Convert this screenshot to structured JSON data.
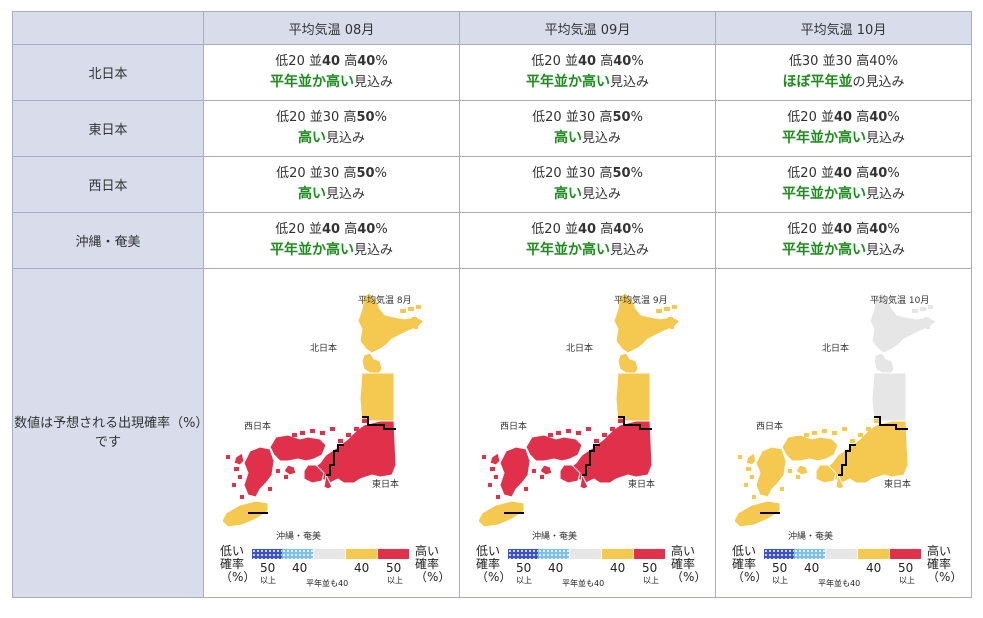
{
  "header": {
    "corner": "",
    "columns": [
      "平均気温 08月",
      "平均気温 09月",
      "平均気温 10月"
    ]
  },
  "rows": [
    {
      "region": "北日本",
      "cells": [
        {
          "low": "20",
          "mid": "40",
          "high": "40",
          "mid_bold": true,
          "high_bold": true,
          "outlook": "平年並か高い",
          "suffix": "見込み"
        },
        {
          "low": "20",
          "mid": "40",
          "high": "40",
          "mid_bold": true,
          "high_bold": true,
          "outlook": "平年並か高い",
          "suffix": "見込み"
        },
        {
          "low": "30",
          "mid": "30",
          "high": "40",
          "mid_bold": false,
          "high_bold": false,
          "outlook": "ほぼ平年並",
          "suffix": "の見込み"
        }
      ]
    },
    {
      "region": "東日本",
      "cells": [
        {
          "low": "20",
          "mid": "30",
          "high": "50",
          "mid_bold": false,
          "high_bold": true,
          "outlook": "高い",
          "suffix": "見込み"
        },
        {
          "low": "20",
          "mid": "30",
          "high": "50",
          "mid_bold": false,
          "high_bold": true,
          "outlook": "高い",
          "suffix": "見込み"
        },
        {
          "low": "20",
          "mid": "40",
          "high": "40",
          "mid_bold": true,
          "high_bold": true,
          "outlook": "平年並か高い",
          "suffix": "見込み"
        }
      ]
    },
    {
      "region": "西日本",
      "cells": [
        {
          "low": "20",
          "mid": "30",
          "high": "50",
          "mid_bold": false,
          "high_bold": true,
          "outlook": "高い",
          "suffix": "見込み"
        },
        {
          "low": "20",
          "mid": "30",
          "high": "50",
          "mid_bold": false,
          "high_bold": true,
          "outlook": "高い",
          "suffix": "見込み"
        },
        {
          "low": "20",
          "mid": "40",
          "high": "40",
          "mid_bold": true,
          "high_bold": true,
          "outlook": "平年並か高い",
          "suffix": "見込み"
        }
      ]
    },
    {
      "region": "沖縄・奄美",
      "cells": [
        {
          "low": "20",
          "mid": "40",
          "high": "40",
          "mid_bold": true,
          "high_bold": true,
          "outlook": "平年並か高い",
          "suffix": "見込み"
        },
        {
          "low": "20",
          "mid": "40",
          "high": "40",
          "mid_bold": true,
          "high_bold": true,
          "outlook": "平年並か高い",
          "suffix": "見込み"
        },
        {
          "low": "20",
          "mid": "40",
          "high": "40",
          "mid_bold": true,
          "high_bold": true,
          "outlook": "平年並か高い",
          "suffix": "見込み"
        }
      ]
    }
  ],
  "labels": {
    "low": "低",
    "mid": "並",
    "high": "高",
    "pct": "%"
  },
  "map_row": {
    "note": "数値は予想される出現確率（%）です",
    "maps": [
      {
        "title": "平均気温 8月",
        "fills": {
          "north": "yellow",
          "east": "red",
          "west": "red",
          "okinawa": "yellow"
        }
      },
      {
        "title": "平均気温 9月",
        "fills": {
          "north": "yellow",
          "east": "red",
          "west": "red",
          "okinawa": "yellow"
        }
      },
      {
        "title": "平均気温 10月",
        "fills": {
          "north": "gray",
          "east": "yellow",
          "west": "yellow",
          "okinawa": "yellow"
        }
      }
    ],
    "region_labels": {
      "north": "北日本",
      "east": "東日本",
      "west": "西日本",
      "okinawa": "沖縄・奄美"
    },
    "legend": {
      "low_word": "低い",
      "high_word": "高い",
      "prob_word": "確率",
      "unit": "（%）",
      "n50": "50",
      "n40": "40",
      "ijo": "以上",
      "normal_note": "平年並も40"
    }
  },
  "colors": {
    "red": "#e0304a",
    "yellow": "#f5c84f",
    "gray": "#e6e6e6",
    "blue_dark": "#3b52c8",
    "blue_light": "#7ec0ea",
    "green": "#1e8c1e",
    "header_bg": "#d9dcea",
    "border": "#a8adc6"
  }
}
